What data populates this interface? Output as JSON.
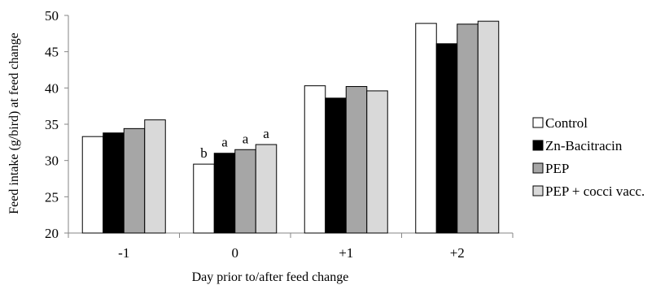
{
  "chart_data": {
    "type": "bar",
    "title": "",
    "xlabel": "Day prior to/after feed change",
    "ylabel": "Feed intake (g/bird) at feed change",
    "ylim": [
      20,
      50
    ],
    "yticks": [
      20,
      25,
      30,
      35,
      40,
      45,
      50
    ],
    "categories": [
      "-1",
      "0",
      "+1",
      "+2"
    ],
    "grid": false,
    "legend_position": "right",
    "series": [
      {
        "name": "Control",
        "color": "#ffffff",
        "values": [
          33.3,
          29.5,
          40.3,
          48.9
        ]
      },
      {
        "name": "Zn-Bacitracin",
        "color": "#000000",
        "values": [
          33.8,
          31.0,
          38.6,
          46.1
        ]
      },
      {
        "name": "PEP",
        "color": "#a6a6a6",
        "values": [
          34.4,
          31.5,
          40.2,
          48.8
        ]
      },
      {
        "name": "PEP + cocci vacc.",
        "color": "#d9d9d9",
        "values": [
          35.6,
          32.2,
          39.6,
          49.2
        ]
      }
    ],
    "annotations": [
      {
        "category": "0",
        "series": "Control",
        "text": "b"
      },
      {
        "category": "0",
        "series": "Zn-Bacitracin",
        "text": "a"
      },
      {
        "category": "0",
        "series": "PEP",
        "text": "a"
      },
      {
        "category": "0",
        "series": "PEP + cocci vacc.",
        "text": "a"
      }
    ]
  }
}
